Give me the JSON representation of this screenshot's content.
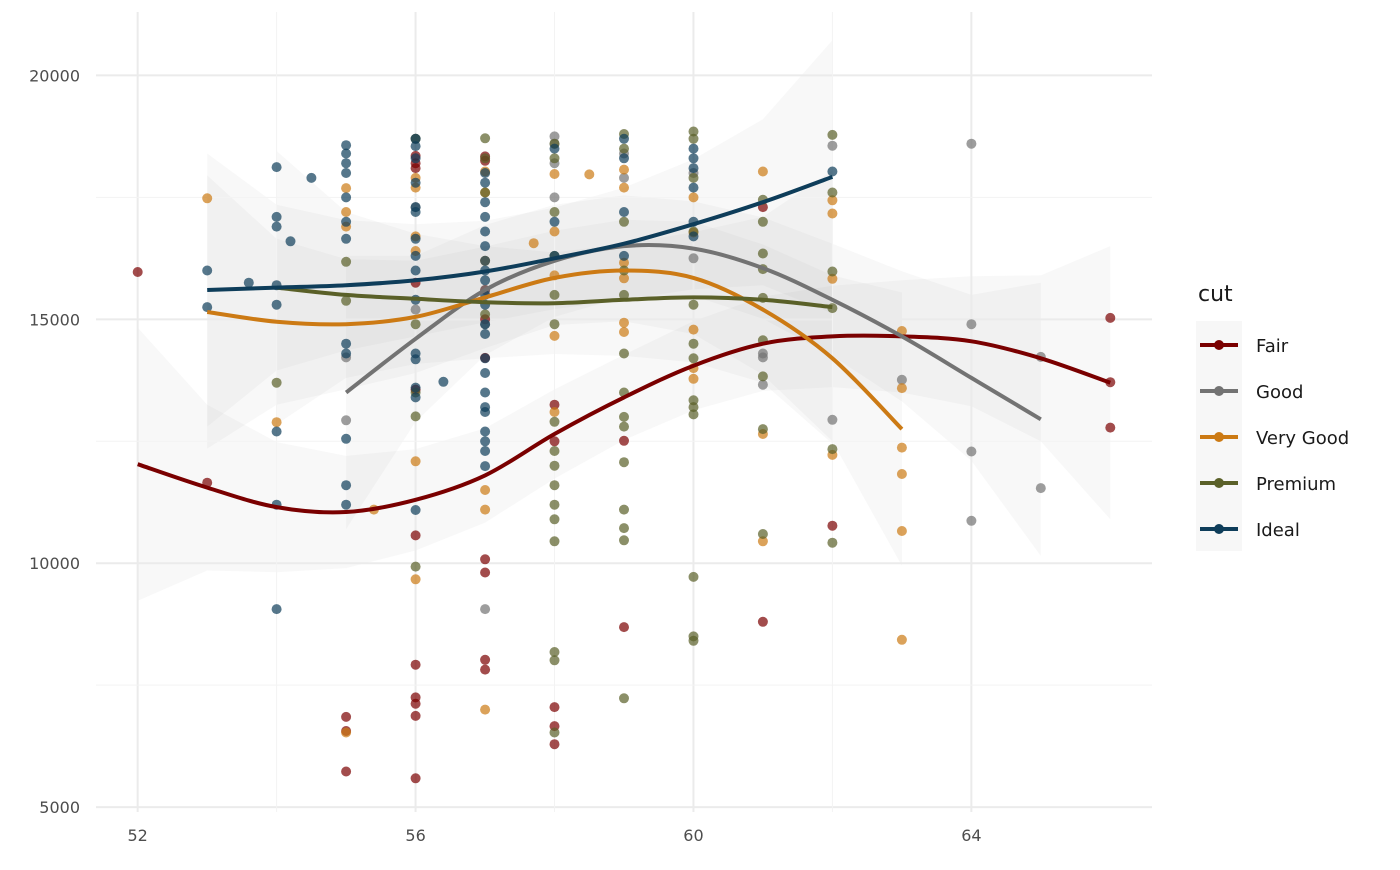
{
  "chart_data": {
    "type": "scatter",
    "title": "",
    "xlabel": "",
    "ylabel": "",
    "xlim": [
      51.4,
      66.6
    ],
    "ylim": [
      4900,
      21300
    ],
    "x_ticks": [
      52,
      56,
      60,
      64
    ],
    "y_ticks": [
      5000,
      10000,
      15000,
      20000
    ],
    "grid": true,
    "legend": {
      "title": "cut",
      "position": "right"
    },
    "series": [
      {
        "name": "Fair",
        "color": "#7a0000",
        "points": [
          [
            52,
            15970
          ],
          [
            53,
            11650
          ],
          [
            55,
            6850
          ],
          [
            55,
            6560
          ],
          [
            55,
            5730
          ],
          [
            56,
            18350
          ],
          [
            56,
            18200
          ],
          [
            56,
            18100
          ],
          [
            56,
            15750
          ],
          [
            56,
            13560
          ],
          [
            56,
            10570
          ],
          [
            56,
            7920
          ],
          [
            56,
            7250
          ],
          [
            56,
            7120
          ],
          [
            56,
            6870
          ],
          [
            56,
            5590
          ],
          [
            57,
            18340
          ],
          [
            57,
            18250
          ],
          [
            57,
            15600
          ],
          [
            57,
            15000
          ],
          [
            57,
            14210
          ],
          [
            57,
            10080
          ],
          [
            57,
            9810
          ],
          [
            57,
            8020
          ],
          [
            57,
            7820
          ],
          [
            58,
            13250
          ],
          [
            58,
            12500
          ],
          [
            58,
            7050
          ],
          [
            58,
            6660
          ],
          [
            58,
            6290
          ],
          [
            59,
            12510
          ],
          [
            59,
            8690
          ],
          [
            61,
            17300
          ],
          [
            61,
            8800
          ],
          [
            62,
            10770
          ],
          [
            66,
            15030
          ],
          [
            66,
            13710
          ],
          [
            66,
            12780
          ]
        ],
        "smooth": [
          [
            52,
            12030
          ],
          [
            53,
            11550
          ],
          [
            54,
            11150
          ],
          [
            55,
            11050
          ],
          [
            56,
            11300
          ],
          [
            57,
            11800
          ],
          [
            58,
            12650
          ],
          [
            59,
            13400
          ],
          [
            60,
            14050
          ],
          [
            61,
            14500
          ],
          [
            62,
            14650
          ],
          [
            63,
            14650
          ],
          [
            64,
            14550
          ],
          [
            65,
            14200
          ],
          [
            66,
            13700
          ]
        ]
      },
      {
        "name": "Good",
        "color": "#737373",
        "points": [
          [
            55,
            14220
          ],
          [
            55,
            12930
          ],
          [
            56,
            18700
          ],
          [
            56,
            17300
          ],
          [
            56,
            15200
          ],
          [
            57,
            15600
          ],
          [
            57,
            14900
          ],
          [
            57,
            9060
          ],
          [
            58,
            18750
          ],
          [
            58,
            18600
          ],
          [
            58,
            18200
          ],
          [
            58,
            17500
          ],
          [
            59,
            18400
          ],
          [
            59,
            17900
          ],
          [
            60,
            18000
          ],
          [
            60,
            16250
          ],
          [
            61,
            14220
          ],
          [
            61,
            13660
          ],
          [
            61,
            14300
          ],
          [
            62,
            18560
          ],
          [
            62,
            12940
          ],
          [
            63,
            13760
          ],
          [
            64,
            18600
          ],
          [
            64,
            14900
          ],
          [
            64,
            12290
          ],
          [
            64,
            10870
          ],
          [
            65,
            14230
          ],
          [
            65,
            11540
          ]
        ],
        "smooth": [
          [
            55,
            13500
          ],
          [
            56,
            14600
          ],
          [
            57,
            15600
          ],
          [
            58,
            16200
          ],
          [
            59,
            16500
          ],
          [
            60,
            16450
          ],
          [
            61,
            16050
          ],
          [
            62,
            15400
          ],
          [
            63,
            14650
          ],
          [
            64,
            13800
          ],
          [
            65,
            12950
          ]
        ]
      },
      {
        "name": "Very Good",
        "color": "#cc7a14",
        "points": [
          [
            53,
            17480
          ],
          [
            54,
            12890
          ],
          [
            55,
            17690
          ],
          [
            55,
            17200
          ],
          [
            55,
            16900
          ],
          [
            55,
            6530
          ],
          [
            56,
            17900
          ],
          [
            56,
            17700
          ],
          [
            56,
            16700
          ],
          [
            56,
            16400
          ],
          [
            56,
            12090
          ],
          [
            56,
            9670
          ],
          [
            57,
            18030
          ],
          [
            57,
            17600
          ],
          [
            57,
            16200
          ],
          [
            57,
            11500
          ],
          [
            57,
            11100
          ],
          [
            57,
            7000
          ],
          [
            58,
            17980
          ],
          [
            58,
            16800
          ],
          [
            58,
            15900
          ],
          [
            58,
            14660
          ],
          [
            58,
            13100
          ],
          [
            59,
            18070
          ],
          [
            59,
            17700
          ],
          [
            59,
            16160
          ],
          [
            59,
            15840
          ],
          [
            59,
            14930
          ],
          [
            59,
            14740
          ],
          [
            60,
            17500
          ],
          [
            60,
            16780
          ],
          [
            60,
            14790
          ],
          [
            60,
            14000
          ],
          [
            60,
            13780
          ],
          [
            61,
            18030
          ],
          [
            61,
            12650
          ],
          [
            61,
            10450
          ],
          [
            62,
            17440
          ],
          [
            62,
            17170
          ],
          [
            62,
            15830
          ],
          [
            62,
            12220
          ],
          [
            63,
            14760
          ],
          [
            63,
            13590
          ],
          [
            63,
            12370
          ],
          [
            63,
            11830
          ],
          [
            63,
            10660
          ],
          [
            63,
            8430
          ],
          [
            57.7,
            16560
          ],
          [
            58.5,
            17970
          ],
          [
            55.4,
            11100
          ]
        ],
        "smooth": [
          [
            53,
            15150
          ],
          [
            54,
            14950
          ],
          [
            55,
            14900
          ],
          [
            56,
            15050
          ],
          [
            57,
            15450
          ],
          [
            58,
            15850
          ],
          [
            59,
            16000
          ],
          [
            60,
            15850
          ],
          [
            61,
            15200
          ],
          [
            62,
            14200
          ],
          [
            63,
            12750
          ]
        ]
      },
      {
        "name": "Premium",
        "color": "#5a6028",
        "points": [
          [
            54,
            13700
          ],
          [
            55,
            16180
          ],
          [
            55,
            15380
          ],
          [
            56,
            18700
          ],
          [
            56,
            14900
          ],
          [
            56,
            13010
          ],
          [
            56,
            9930
          ],
          [
            56,
            13500
          ],
          [
            57,
            18710
          ],
          [
            57,
            18300
          ],
          [
            57,
            17600
          ],
          [
            57,
            15100
          ],
          [
            58,
            18600
          ],
          [
            58,
            18300
          ],
          [
            58,
            17200
          ],
          [
            58,
            16300
          ],
          [
            58,
            15500
          ],
          [
            58,
            14900
          ],
          [
            58,
            12900
          ],
          [
            58,
            12300
          ],
          [
            58,
            12000
          ],
          [
            58,
            11600
          ],
          [
            58,
            11200
          ],
          [
            58,
            10900
          ],
          [
            58,
            10450
          ],
          [
            58,
            8180
          ],
          [
            58,
            8010
          ],
          [
            58,
            6530
          ],
          [
            59,
            18800
          ],
          [
            59,
            18500
          ],
          [
            59,
            17000
          ],
          [
            59,
            16000
          ],
          [
            59,
            15500
          ],
          [
            59,
            14300
          ],
          [
            59,
            13500
          ],
          [
            59,
            13000
          ],
          [
            59,
            12800
          ],
          [
            59,
            12070
          ],
          [
            59,
            11100
          ],
          [
            59,
            10720
          ],
          [
            59,
            10470
          ],
          [
            59,
            7230
          ],
          [
            60,
            18850
          ],
          [
            60,
            18700
          ],
          [
            60,
            17900
          ],
          [
            60,
            16800
          ],
          [
            60,
            15300
          ],
          [
            60,
            14500
          ],
          [
            60,
            14200
          ],
          [
            60,
            13340
          ],
          [
            60,
            13200
          ],
          [
            60,
            13050
          ],
          [
            60,
            9720
          ],
          [
            60,
            8500
          ],
          [
            60,
            8410
          ],
          [
            61,
            17450
          ],
          [
            61,
            17000
          ],
          [
            61,
            16350
          ],
          [
            61,
            16030
          ],
          [
            61,
            15440
          ],
          [
            61,
            14570
          ],
          [
            61,
            13830
          ],
          [
            61,
            12750
          ],
          [
            61,
            10600
          ],
          [
            62,
            18780
          ],
          [
            62,
            17600
          ],
          [
            62,
            15980
          ],
          [
            62,
            15230
          ],
          [
            62,
            12340
          ],
          [
            62,
            10420
          ]
        ],
        "smooth": [
          [
            54,
            15650
          ],
          [
            55,
            15500
          ],
          [
            56,
            15420
          ],
          [
            57,
            15350
          ],
          [
            58,
            15330
          ],
          [
            59,
            15400
          ],
          [
            60,
            15450
          ],
          [
            61,
            15400
          ],
          [
            62,
            15250
          ]
        ]
      },
      {
        "name": "Ideal",
        "color": "#0e3d5a",
        "points": [
          [
            53,
            16000
          ],
          [
            53,
            15250
          ],
          [
            53.6,
            15750
          ],
          [
            54,
            18120
          ],
          [
            54,
            17100
          ],
          [
            54,
            16900
          ],
          [
            54,
            15700
          ],
          [
            54,
            15300
          ],
          [
            54,
            12700
          ],
          [
            54,
            11200
          ],
          [
            54,
            9060
          ],
          [
            54.2,
            16600
          ],
          [
            54.5,
            17900
          ],
          [
            55,
            18570
          ],
          [
            55,
            18400
          ],
          [
            55,
            18200
          ],
          [
            55,
            18000
          ],
          [
            55,
            17500
          ],
          [
            55,
            17000
          ],
          [
            55,
            16650
          ],
          [
            55,
            14500
          ],
          [
            55,
            14300
          ],
          [
            55,
            12550
          ],
          [
            55,
            11600
          ],
          [
            55,
            11200
          ],
          [
            56,
            18700
          ],
          [
            56,
            18550
          ],
          [
            56,
            18300
          ],
          [
            56,
            17800
          ],
          [
            56,
            17300
          ],
          [
            56,
            17200
          ],
          [
            56,
            16650
          ],
          [
            56,
            16300
          ],
          [
            56,
            16000
          ],
          [
            56,
            15400
          ],
          [
            56,
            14300
          ],
          [
            56,
            14180
          ],
          [
            56,
            13600
          ],
          [
            56,
            13400
          ],
          [
            56,
            11090
          ],
          [
            56.4,
            13720
          ],
          [
            57,
            18000
          ],
          [
            57,
            17800
          ],
          [
            57,
            17400
          ],
          [
            57,
            17100
          ],
          [
            57,
            16800
          ],
          [
            57,
            16500
          ],
          [
            57,
            16200
          ],
          [
            57,
            16000
          ],
          [
            57,
            15800
          ],
          [
            57,
            15500
          ],
          [
            57,
            15300
          ],
          [
            57,
            14900
          ],
          [
            57,
            14700
          ],
          [
            57,
            14200
          ],
          [
            57,
            13900
          ],
          [
            57,
            13500
          ],
          [
            57,
            13200
          ],
          [
            57,
            13100
          ],
          [
            57,
            12700
          ],
          [
            57,
            12500
          ],
          [
            57,
            12300
          ],
          [
            57,
            11990
          ],
          [
            58,
            18500
          ],
          [
            58,
            17000
          ],
          [
            58,
            16300
          ],
          [
            59,
            18700
          ],
          [
            59,
            18300
          ],
          [
            59,
            17200
          ],
          [
            59,
            16300
          ],
          [
            60,
            18500
          ],
          [
            60,
            18300
          ],
          [
            60,
            18100
          ],
          [
            60,
            17700
          ],
          [
            60,
            17000
          ],
          [
            60,
            16700
          ],
          [
            62,
            18030
          ]
        ],
        "smooth": [
          [
            53,
            15600
          ],
          [
            54,
            15650
          ],
          [
            55,
            15700
          ],
          [
            56,
            15800
          ],
          [
            57,
            15980
          ],
          [
            58,
            16250
          ],
          [
            59,
            16550
          ],
          [
            60,
            16950
          ],
          [
            61,
            17400
          ],
          [
            62,
            17920
          ]
        ]
      }
    ]
  }
}
